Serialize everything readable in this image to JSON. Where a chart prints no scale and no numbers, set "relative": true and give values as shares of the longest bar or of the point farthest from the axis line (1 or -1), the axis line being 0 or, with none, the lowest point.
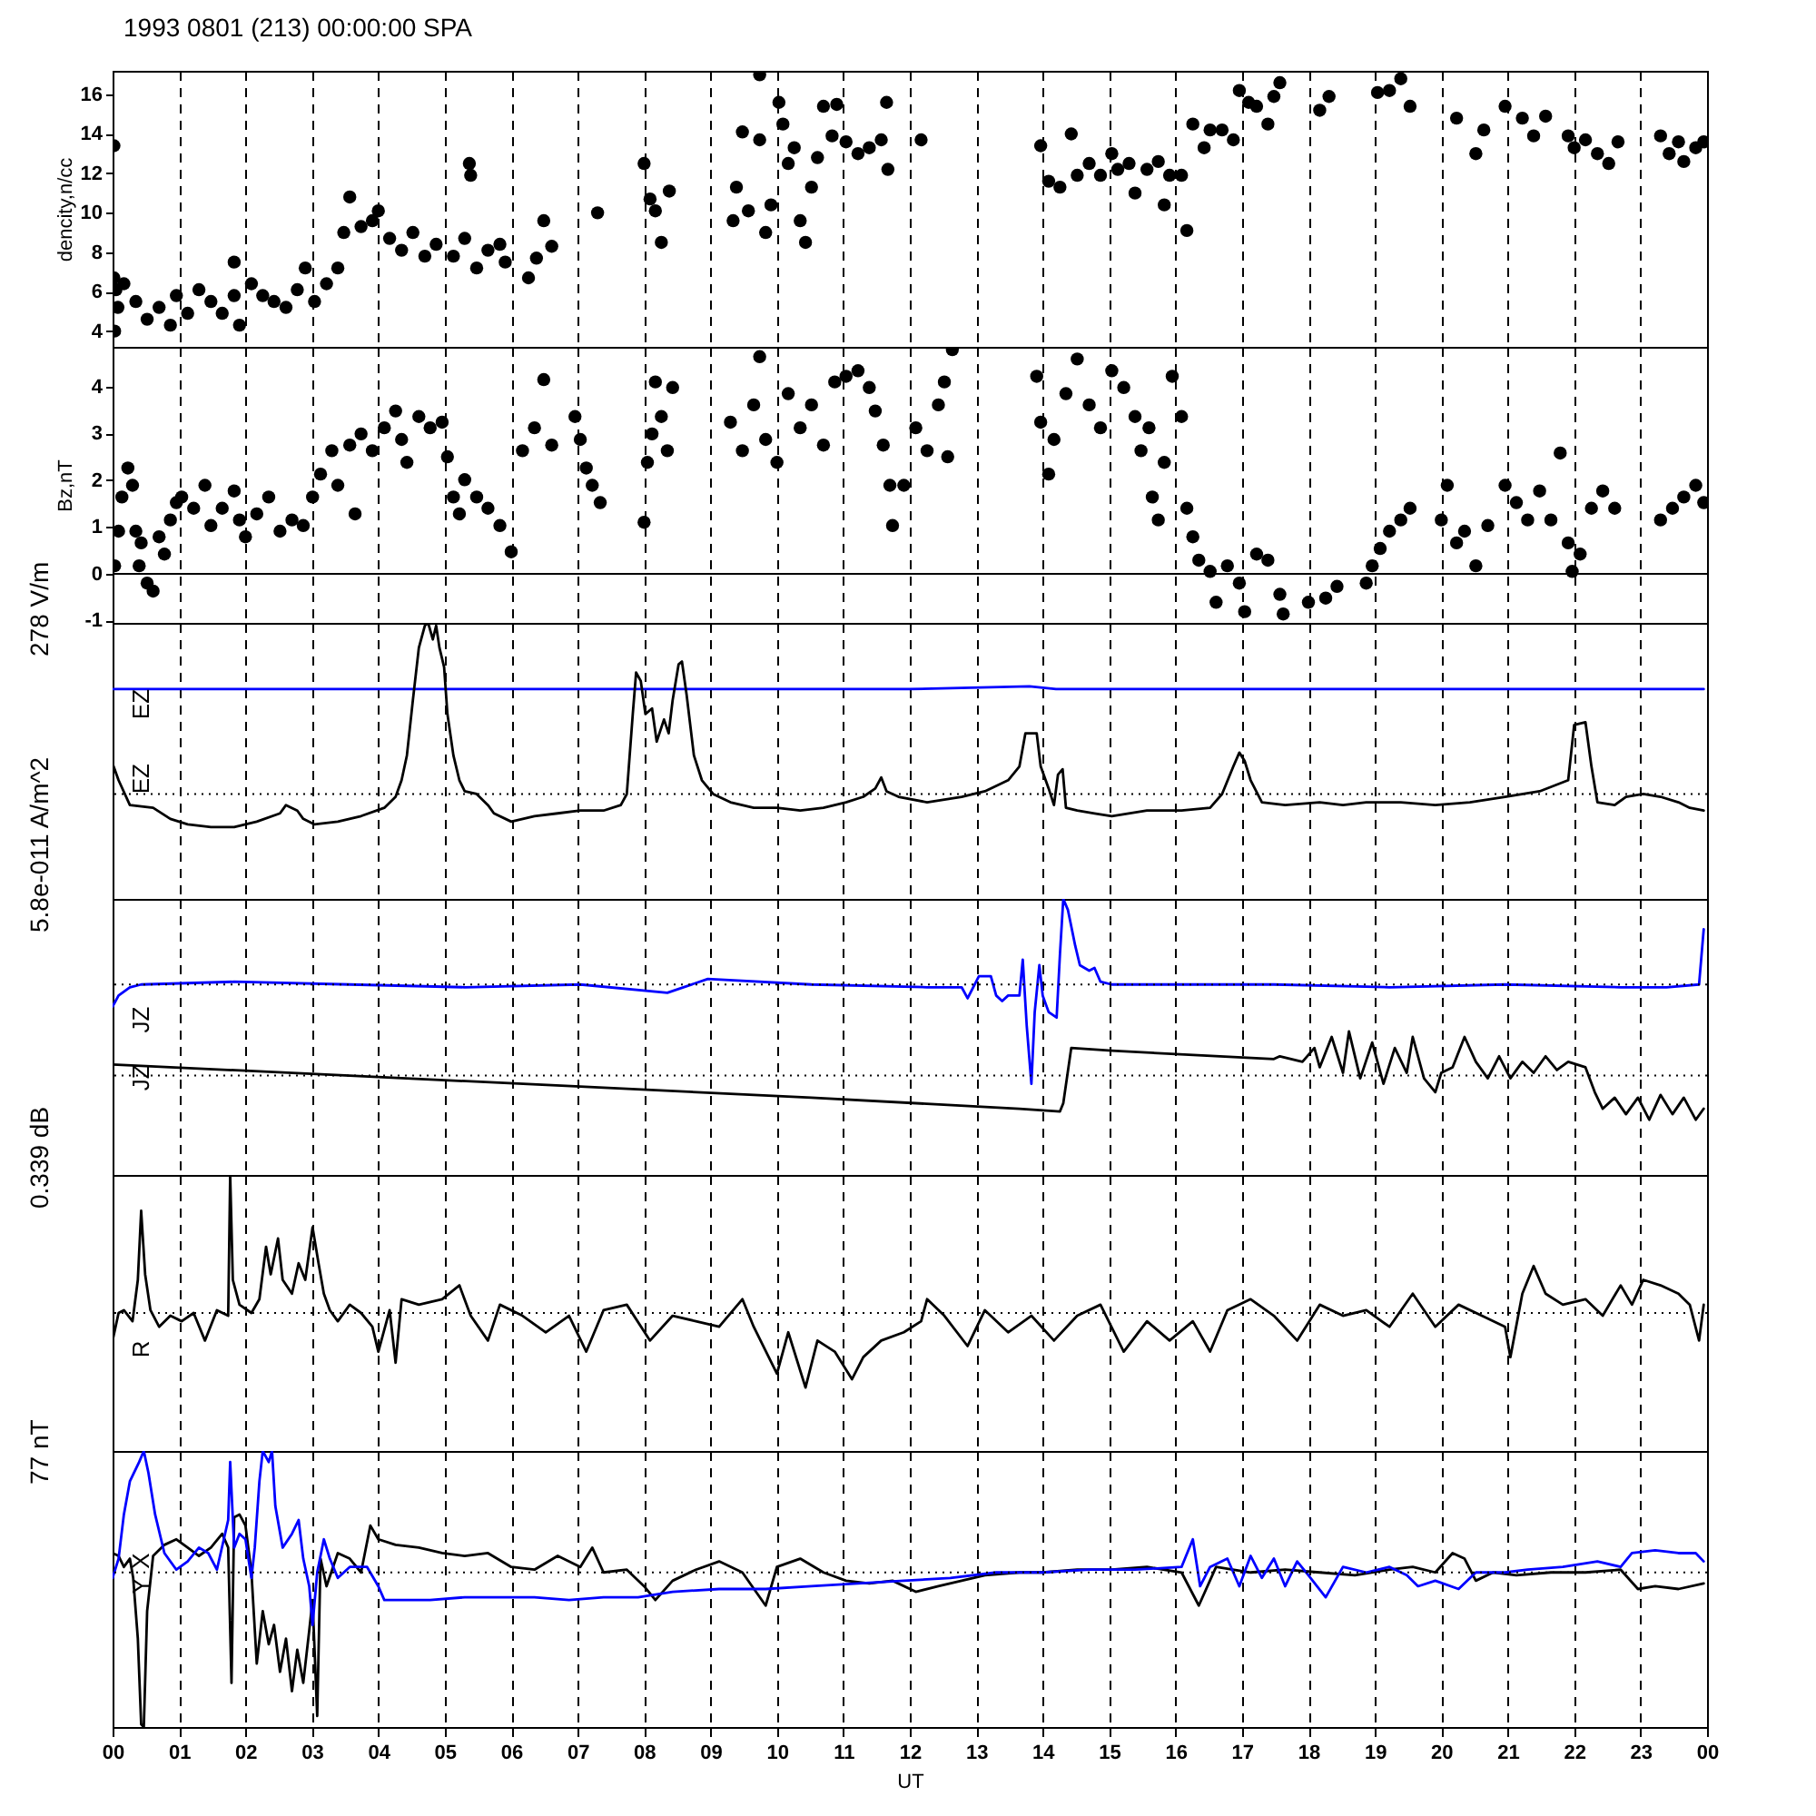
{
  "chart_data": [
    {
      "type": "scatter",
      "title": "1993 0801 (213) 00:00:00 SPA",
      "ylabel": "dencity,n/cc",
      "color": "#000000",
      "marker": "circle",
      "grid": "x",
      "tick_labels": "y",
      "xlim": [
        0,
        24
      ],
      "xticks": [
        0,
        1,
        2,
        3,
        4,
        5,
        6,
        7,
        8,
        9,
        10,
        11,
        12,
        13,
        14,
        15,
        16,
        17,
        18,
        19,
        20,
        21,
        22,
        23,
        24
      ],
      "ylim": [
        3.2,
        17.2
      ],
      "yticks": [
        4,
        6,
        8,
        10,
        12,
        14,
        16
      ],
      "x": [
        0.02,
        0.02,
        0.05,
        0.08,
        0.03,
        0.17,
        0.35,
        0.52,
        0.7,
        0.87,
        0.96,
        1.13,
        1.3,
        1.48,
        1.65,
        1.83,
        1.91,
        1.83,
        2.09,
        2.26,
        2.43,
        2.61,
        2.78,
        2.9,
        3.04,
        3.22,
        3.39,
        3.48,
        3.57,
        3.74,
        3.91,
        4.0,
        4.17,
        4.35,
        4.52,
        4.7,
        4.87,
        5.13,
        5.37,
        5.39,
        5.3,
        5.48,
        5.65,
        5.83,
        5.91,
        6.26,
        6.38,
        6.49,
        6.61,
        7.3,
        8.0,
        8.09,
        8.17,
        8.26,
        8.38,
        9.34,
        9.39,
        9.48,
        9.57,
        9.74,
        9.83,
        9.91,
        10.03,
        10.09,
        10.17,
        10.26,
        10.35,
        10.43,
        10.52,
        10.61,
        10.7,
        10.83,
        10.9,
        9.74,
        11.04,
        11.22,
        11.39,
        11.57,
        11.65,
        11.67,
        12.17,
        13.97,
        14.09,
        14.26,
        14.43,
        14.52,
        14.7,
        14.87,
        15.04,
        15.13,
        15.3,
        15.39,
        15.57,
        15.74,
        15.83,
        15.91,
        16.09,
        16.17,
        16.26,
        16.43,
        16.52,
        16.7,
        16.87,
        16.96,
        17.1,
        17.22,
        17.39,
        17.48,
        17.57,
        18.17,
        18.31,
        19.04,
        19.22,
        19.39,
        19.53,
        20.23,
        20.52,
        20.64,
        20.96,
        21.22,
        21.39,
        21.57,
        21.91,
        22.0,
        22.17,
        22.35,
        22.52,
        22.66,
        23.3,
        23.43,
        23.57,
        23.65,
        23.83,
        23.95
      ],
      "values": [
        13.4,
        6.7,
        6.1,
        5.2,
        4.0,
        6.4,
        5.5,
        4.6,
        5.2,
        4.3,
        5.8,
        4.9,
        6.1,
        5.5,
        4.9,
        5.8,
        4.3,
        7.5,
        6.4,
        5.8,
        5.5,
        5.2,
        6.1,
        7.2,
        5.5,
        6.4,
        7.2,
        9.0,
        10.8,
        9.3,
        9.6,
        10.1,
        8.7,
        8.1,
        9.0,
        7.8,
        8.4,
        7.8,
        12.5,
        11.9,
        8.7,
        7.2,
        8.1,
        8.4,
        7.5,
        6.7,
        7.7,
        9.6,
        8.3,
        10.0,
        12.5,
        10.7,
        10.1,
        8.5,
        11.1,
        9.6,
        11.3,
        14.1,
        10.1,
        13.7,
        9.0,
        10.4,
        15.6,
        14.5,
        12.5,
        13.3,
        9.6,
        8.5,
        11.3,
        12.8,
        15.4,
        13.9,
        15.5,
        17.0,
        13.6,
        13.0,
        13.3,
        13.7,
        15.6,
        12.2,
        13.7,
        13.4,
        11.6,
        11.3,
        14.0,
        11.9,
        12.5,
        11.9,
        13.0,
        12.2,
        12.5,
        11.0,
        12.2,
        12.6,
        10.4,
        11.9,
        11.9,
        9.1,
        14.5,
        13.3,
        14.2,
        14.2,
        13.7,
        16.2,
        15.6,
        15.4,
        14.5,
        15.9,
        16.6,
        15.2,
        15.9,
        16.1,
        16.2,
        16.8,
        15.4,
        14.8,
        13.0,
        14.2,
        15.4,
        14.8,
        13.9,
        14.9,
        13.9,
        13.3,
        13.7,
        13.0,
        12.5,
        13.6,
        13.9,
        13.0,
        13.6,
        12.6,
        13.3,
        13.6
      ]
    },
    {
      "type": "scatter",
      "ylabel": "Bz,nT",
      "color": "#000000",
      "marker": "circle",
      "grid": "x",
      "tick_labels": "y",
      "xlim": [
        0,
        24
      ],
      "xticks": [
        0,
        1,
        2,
        3,
        4,
        5,
        6,
        7,
        8,
        9,
        10,
        11,
        12,
        13,
        14,
        15,
        16,
        17,
        18,
        19,
        20,
        21,
        22,
        23,
        24
      ],
      "ylim": [
        -1.05,
        4.85
      ],
      "yticks": [
        -1,
        0,
        1,
        2,
        3,
        4
      ],
      "ref_lines": [
        {
          "axis": "y",
          "value": 0,
          "line_style": "solid",
          "color": "#000000"
        }
      ],
      "x": [
        0.03,
        0.09,
        0.14,
        0.23,
        0.3,
        0.35,
        0.4,
        0.43,
        0.52,
        0.61,
        0.7,
        0.78,
        0.87,
        0.96,
        1.04,
        1.22,
        1.39,
        1.48,
        1.65,
        1.83,
        1.91,
        2.0,
        2.17,
        2.35,
        2.52,
        2.7,
        2.87,
        3.01,
        3.13,
        3.3,
        3.39,
        3.57,
        3.65,
        3.74,
        3.91,
        4.09,
        4.26,
        4.35,
        4.43,
        4.61,
        4.78,
        4.96,
        5.04,
        5.13,
        5.22,
        5.3,
        5.48,
        5.65,
        5.83,
        6.0,
        6.17,
        6.35,
        6.49,
        6.61,
        6.96,
        7.04,
        7.13,
        7.22,
        7.34,
        8.0,
        8.05,
        8.12,
        8.17,
        8.26,
        8.35,
        8.43,
        9.3,
        9.48,
        9.65,
        9.74,
        9.83,
        10.0,
        10.17,
        10.35,
        10.52,
        10.7,
        10.87,
        11.04,
        11.22,
        11.39,
        11.48,
        11.6,
        11.7,
        11.74,
        11.91,
        12.09,
        12.26,
        12.43,
        12.52,
        12.57,
        12.64,
        13.91,
        13.97,
        14.09,
        14.17,
        14.35,
        14.52,
        14.7,
        14.87,
        15.04,
        15.22,
        15.39,
        15.48,
        15.6,
        15.65,
        15.74,
        15.83,
        15.95,
        16.09,
        16.17,
        16.26,
        16.35,
        16.52,
        16.61,
        16.78,
        16.96,
        17.04,
        17.22,
        17.39,
        17.57,
        17.62,
        18.0,
        18.26,
        18.43,
        18.87,
        18.96,
        19.08,
        19.22,
        19.39,
        19.53,
        20.0,
        20.09,
        20.23,
        20.35,
        20.52,
        20.7,
        20.96,
        21.13,
        21.3,
        21.48,
        21.65,
        21.79,
        21.91,
        21.97,
        22.09,
        22.26,
        22.43,
        22.61,
        23.3,
        23.48,
        23.65,
        23.83,
        23.95
      ],
      "values": [
        0.17,
        0.91,
        1.64,
        2.26,
        1.89,
        0.91,
        0.17,
        0.66,
        -0.2,
        -0.37,
        0.79,
        0.42,
        1.15,
        1.52,
        1.64,
        1.4,
        1.89,
        1.03,
        1.4,
        1.77,
        1.15,
        0.79,
        1.28,
        1.64,
        0.91,
        1.15,
        1.03,
        1.64,
        2.13,
        2.63,
        1.89,
        2.75,
        1.28,
        2.99,
        2.63,
        3.12,
        3.48,
        2.87,
        2.38,
        3.36,
        3.12,
        3.24,
        2.5,
        1.64,
        1.28,
        2.01,
        1.64,
        1.4,
        1.03,
        0.47,
        2.63,
        3.12,
        4.15,
        2.75,
        3.36,
        2.87,
        2.26,
        1.89,
        1.52,
        1.1,
        2.38,
        2.99,
        4.1,
        3.36,
        2.63,
        3.98,
        3.24,
        2.63,
        3.61,
        4.64,
        2.87,
        2.38,
        3.85,
        3.12,
        3.61,
        2.75,
        4.1,
        4.22,
        4.34,
        3.98,
        3.48,
        2.75,
        1.89,
        1.03,
        1.89,
        3.12,
        2.63,
        3.61,
        4.1,
        2.5,
        4.79,
        4.22,
        3.24,
        2.13,
        2.87,
        3.85,
        4.59,
        3.61,
        3.12,
        4.34,
        3.98,
        3.36,
        2.63,
        3.12,
        1.64,
        1.15,
        2.38,
        4.22,
        3.36,
        1.4,
        0.79,
        0.29,
        0.05,
        -0.61,
        0.17,
        -0.2,
        -0.81,
        0.42,
        0.29,
        -0.44,
        -0.86,
        -0.61,
        -0.52,
        -0.27,
        -0.2,
        0.17,
        0.54,
        0.91,
        1.15,
        1.4,
        1.15,
        1.89,
        0.66,
        0.91,
        0.17,
        1.03,
        1.89,
        1.52,
        1.15,
        1.77,
        1.15,
        2.58,
        0.66,
        0.05,
        0.42,
        1.4,
        1.77,
        1.4,
        1.15,
        1.4,
        1.64,
        1.89,
        1.52
      ]
    },
    {
      "type": "line",
      "relative": true,
      "ylabel": "278 V/m",
      "grid": "x",
      "tick_labels": false,
      "xlim": [
        0,
        24
      ],
      "xticks": [
        0,
        1,
        2,
        3,
        4,
        5,
        6,
        7,
        8,
        9,
        10,
        11,
        12,
        13,
        14,
        15,
        16,
        17,
        18,
        19,
        20,
        21,
        22,
        23,
        24
      ],
      "ref_lines": [
        {
          "axis": "y",
          "value": 0.38,
          "line_style": "dotted",
          "color": "#000000"
        }
      ],
      "series": [
        {
          "name": "EZ",
          "color": "#0000ff",
          "x": [
            0,
            2,
            4,
            6,
            8,
            10,
            12,
            13.8,
            14.2,
            16,
            18,
            20,
            22,
            23.95
          ],
          "values": [
            0.76,
            0.76,
            0.76,
            0.76,
            0.76,
            0.76,
            0.76,
            0.77,
            0.76,
            0.76,
            0.76,
            0.76,
            0.76,
            0.76
          ]
        },
        {
          "name": "EZ",
          "color": "#000000",
          "x": [
            0.0,
            0.09,
            0.26,
            0.61,
            0.87,
            1.13,
            1.48,
            1.83,
            2.17,
            2.52,
            2.61,
            2.78,
            2.87,
            3.04,
            3.39,
            3.74,
            4.09,
            4.26,
            4.35,
            4.43,
            4.52,
            4.61,
            4.7,
            4.75,
            4.82,
            4.87,
            4.92,
            4.99,
            5.04,
            5.13,
            5.22,
            5.3,
            5.48,
            5.65,
            5.74,
            6.0,
            6.35,
            6.7,
            7.04,
            7.39,
            7.65,
            7.74,
            7.83,
            7.88,
            7.95,
            8.02,
            8.12,
            8.19,
            8.3,
            8.37,
            8.43,
            8.52,
            8.57,
            8.64,
            8.75,
            8.87,
            9.04,
            9.3,
            9.65,
            10.0,
            10.35,
            10.7,
            11.04,
            11.3,
            11.48,
            11.57,
            11.65,
            11.83,
            12.26,
            12.78,
            13.13,
            13.48,
            13.65,
            13.74,
            13.91,
            13.97,
            14.09,
            14.17,
            14.23,
            14.3,
            14.35,
            14.52,
            14.78,
            15.04,
            15.57,
            16.09,
            16.52,
            16.7,
            16.87,
            16.96,
            17.04,
            17.13,
            17.3,
            17.65,
            18.17,
            18.52,
            18.87,
            19.39,
            19.91,
            20.43,
            20.96,
            21.48,
            21.91,
            22.0,
            22.17,
            22.26,
            22.35,
            22.61,
            22.78,
            23.04,
            23.3,
            23.57,
            23.74,
            23.95
          ],
          "values": [
            0.49,
            0.43,
            0.34,
            0.33,
            0.29,
            0.27,
            0.26,
            0.26,
            0.28,
            0.31,
            0.34,
            0.32,
            0.29,
            0.27,
            0.28,
            0.3,
            0.33,
            0.37,
            0.43,
            0.52,
            0.72,
            0.91,
            0.99,
            1.0,
            0.94,
            0.99,
            0.91,
            0.84,
            0.67,
            0.52,
            0.43,
            0.39,
            0.38,
            0.34,
            0.31,
            0.28,
            0.3,
            0.31,
            0.32,
            0.32,
            0.34,
            0.38,
            0.67,
            0.82,
            0.79,
            0.67,
            0.69,
            0.57,
            0.65,
            0.6,
            0.72,
            0.85,
            0.86,
            0.74,
            0.52,
            0.43,
            0.38,
            0.35,
            0.33,
            0.33,
            0.32,
            0.33,
            0.35,
            0.37,
            0.4,
            0.44,
            0.39,
            0.37,
            0.35,
            0.37,
            0.39,
            0.43,
            0.48,
            0.6,
            0.6,
            0.48,
            0.4,
            0.34,
            0.45,
            0.47,
            0.33,
            0.32,
            0.31,
            0.3,
            0.32,
            0.32,
            0.33,
            0.38,
            0.48,
            0.53,
            0.5,
            0.43,
            0.35,
            0.34,
            0.35,
            0.34,
            0.35,
            0.35,
            0.34,
            0.35,
            0.37,
            0.39,
            0.43,
            0.63,
            0.64,
            0.48,
            0.35,
            0.34,
            0.37,
            0.38,
            0.37,
            0.35,
            0.33,
            0.32
          ]
        }
      ]
    },
    {
      "type": "line",
      "relative": true,
      "ylabel": "5.8e-011 A/m^2",
      "grid": "x",
      "tick_labels": false,
      "xlim": [
        0,
        24
      ],
      "xticks": [
        0,
        1,
        2,
        3,
        4,
        5,
        6,
        7,
        8,
        9,
        10,
        11,
        12,
        13,
        14,
        15,
        16,
        17,
        18,
        19,
        20,
        21,
        22,
        23,
        24
      ],
      "ref_lines": [
        {
          "axis": "y",
          "value": 0.69,
          "line_style": "dotted",
          "color": "#000000"
        },
        {
          "axis": "y",
          "value": 0.36,
          "line_style": "dotted",
          "color": "#000000"
        }
      ],
      "series": [
        {
          "name": "JZ",
          "color": "#0000ff",
          "x": [
            0.0,
            0.09,
            0.26,
            0.43,
            1.83,
            3.57,
            5.3,
            7.04,
            8.35,
            8.96,
            10.52,
            12.26,
            12.78,
            12.87,
            13.04,
            13.22,
            13.3,
            13.39,
            13.48,
            13.65,
            13.7,
            13.76,
            13.83,
            13.88,
            13.95,
            14.0,
            14.09,
            14.21,
            14.26,
            14.31,
            14.38,
            14.49,
            14.56,
            14.7,
            14.78,
            14.87,
            15.04,
            15.74,
            17.48,
            19.22,
            20.96,
            22.7,
            23.39,
            23.88,
            23.95
          ],
          "values": [
            0.61,
            0.65,
            0.68,
            0.69,
            0.7,
            0.69,
            0.68,
            0.69,
            0.66,
            0.71,
            0.69,
            0.68,
            0.68,
            0.64,
            0.72,
            0.72,
            0.65,
            0.63,
            0.65,
            0.65,
            0.78,
            0.54,
            0.33,
            0.59,
            0.76,
            0.65,
            0.59,
            0.57,
            0.8,
            1.0,
            0.96,
            0.83,
            0.76,
            0.74,
            0.75,
            0.7,
            0.69,
            0.69,
            0.69,
            0.68,
            0.69,
            0.68,
            0.68,
            0.69,
            0.89
          ]
        },
        {
          "name": "JZ",
          "color": "#000000",
          "x": [
            0.0,
            3.57,
            7.04,
            10.52,
            13.65,
            14.26,
            14.31,
            14.43,
            15.04,
            17.48,
            17.57,
            17.91,
            18.09,
            18.17,
            18.35,
            18.52,
            18.61,
            18.78,
            18.96,
            19.13,
            19.3,
            19.48,
            19.57,
            19.74,
            19.91,
            20.0,
            20.17,
            20.35,
            20.52,
            20.7,
            20.87,
            21.04,
            21.22,
            21.39,
            21.57,
            21.74,
            21.91,
            22.17,
            22.31,
            22.43,
            22.61,
            22.78,
            22.96,
            23.13,
            23.3,
            23.48,
            23.65,
            23.83,
            23.95
          ],
          "values": [
            0.4,
            0.36,
            0.32,
            0.28,
            0.24,
            0.23,
            0.26,
            0.46,
            0.45,
            0.42,
            0.43,
            0.41,
            0.46,
            0.39,
            0.5,
            0.37,
            0.52,
            0.35,
            0.48,
            0.33,
            0.46,
            0.37,
            0.5,
            0.35,
            0.3,
            0.37,
            0.39,
            0.5,
            0.41,
            0.35,
            0.43,
            0.35,
            0.41,
            0.37,
            0.43,
            0.38,
            0.41,
            0.39,
            0.3,
            0.24,
            0.28,
            0.22,
            0.28,
            0.2,
            0.29,
            0.22,
            0.28,
            0.2,
            0.24
          ]
        }
      ]
    },
    {
      "type": "line",
      "relative": true,
      "ylabel": "0.339 dB",
      "grid": "x",
      "tick_labels": false,
      "xlim": [
        0,
        24
      ],
      "xticks": [
        0,
        1,
        2,
        3,
        4,
        5,
        6,
        7,
        8,
        9,
        10,
        11,
        12,
        13,
        14,
        15,
        16,
        17,
        18,
        19,
        20,
        21,
        22,
        23,
        24
      ],
      "ref_lines": [
        {
          "axis": "y",
          "value": 0.5,
          "line_style": "dotted",
          "color": "#000000"
        }
      ],
      "series": [
        {
          "name": "R",
          "color": "#000000",
          "x": [
            0.0,
            0.09,
            0.17,
            0.3,
            0.38,
            0.43,
            0.49,
            0.57,
            0.7,
            0.87,
            1.04,
            1.22,
            1.39,
            1.57,
            1.74,
            1.77,
            1.81,
            1.91,
            2.09,
            2.21,
            2.31,
            2.38,
            2.49,
            2.56,
            2.7,
            2.8,
            2.9,
            3.01,
            3.1,
            3.18,
            3.27,
            3.39,
            3.57,
            3.74,
            3.91,
            4.0,
            4.17,
            4.26,
            4.35,
            4.61,
            4.96,
            5.22,
            5.39,
            5.65,
            5.83,
            6.17,
            6.52,
            6.87,
            7.13,
            7.39,
            7.74,
            8.09,
            8.43,
            8.78,
            9.13,
            9.48,
            9.65,
            10.0,
            10.17,
            10.43,
            10.61,
            10.87,
            11.13,
            11.3,
            11.57,
            11.91,
            12.17,
            12.26,
            12.52,
            12.87,
            13.13,
            13.48,
            13.83,
            14.17,
            14.52,
            14.87,
            15.22,
            15.57,
            15.91,
            16.26,
            16.52,
            16.78,
            17.13,
            17.48,
            17.83,
            18.17,
            18.52,
            18.87,
            19.22,
            19.57,
            19.91,
            20.26,
            20.61,
            20.96,
            21.04,
            21.22,
            21.39,
            21.57,
            21.83,
            22.17,
            22.43,
            22.7,
            22.87,
            23.04,
            23.3,
            23.57,
            23.74,
            23.88,
            23.95
          ],
          "values": [
            0.4,
            0.5,
            0.51,
            0.47,
            0.62,
            0.87,
            0.64,
            0.51,
            0.45,
            0.49,
            0.47,
            0.5,
            0.4,
            0.51,
            0.49,
            1.0,
            0.62,
            0.53,
            0.5,
            0.55,
            0.74,
            0.64,
            0.77,
            0.62,
            0.57,
            0.68,
            0.62,
            0.81,
            0.68,
            0.57,
            0.51,
            0.47,
            0.53,
            0.5,
            0.45,
            0.36,
            0.51,
            0.32,
            0.55,
            0.53,
            0.55,
            0.6,
            0.49,
            0.4,
            0.53,
            0.49,
            0.43,
            0.49,
            0.36,
            0.51,
            0.53,
            0.4,
            0.49,
            0.47,
            0.45,
            0.55,
            0.45,
            0.28,
            0.43,
            0.23,
            0.4,
            0.36,
            0.26,
            0.34,
            0.4,
            0.43,
            0.47,
            0.55,
            0.49,
            0.38,
            0.51,
            0.43,
            0.49,
            0.4,
            0.49,
            0.53,
            0.36,
            0.47,
            0.4,
            0.47,
            0.36,
            0.51,
            0.55,
            0.49,
            0.4,
            0.53,
            0.49,
            0.51,
            0.45,
            0.57,
            0.45,
            0.53,
            0.49,
            0.45,
            0.34,
            0.57,
            0.67,
            0.57,
            0.53,
            0.55,
            0.49,
            0.6,
            0.53,
            0.62,
            0.6,
            0.57,
            0.53,
            0.4,
            0.53
          ]
        }
      ]
    },
    {
      "type": "line",
      "relative": true,
      "ylabel": "77 nT",
      "xlabel": "UT",
      "grid": "x",
      "tick_labels": "x",
      "xlim": [
        0,
        24
      ],
      "xticks": [
        {
          "value": 0,
          "label": "00"
        },
        {
          "value": 1,
          "label": "01"
        },
        {
          "value": 2,
          "label": "02"
        },
        {
          "value": 3,
          "label": "03"
        },
        {
          "value": 4,
          "label": "04"
        },
        {
          "value": 5,
          "label": "05"
        },
        {
          "value": 6,
          "label": "06"
        },
        {
          "value": 7,
          "label": "07"
        },
        {
          "value": 8,
          "label": "08"
        },
        {
          "value": 9,
          "label": "09"
        },
        {
          "value": 10,
          "label": "10"
        },
        {
          "value": 11,
          "label": "11"
        },
        {
          "value": 12,
          "label": "12"
        },
        {
          "value": 13,
          "label": "13"
        },
        {
          "value": 14,
          "label": "14"
        },
        {
          "value": 15,
          "label": "15"
        },
        {
          "value": 16,
          "label": "16"
        },
        {
          "value": 17,
          "label": "17"
        },
        {
          "value": 18,
          "label": "18"
        },
        {
          "value": 19,
          "label": "19"
        },
        {
          "value": 20,
          "label": "20"
        },
        {
          "value": 21,
          "label": "21"
        },
        {
          "value": 22,
          "label": "22"
        },
        {
          "value": 23,
          "label": "23"
        },
        {
          "value": 24,
          "label": "00"
        }
      ],
      "ref_lines": [
        {
          "axis": "y",
          "value": 0.56,
          "line_style": "dotted",
          "color": "#000000"
        }
      ],
      "series": [
        {
          "name": "X",
          "color": "#000000",
          "x": [
            0.0,
            0.09,
            0.17,
            0.26,
            0.31,
            0.38,
            0.43,
            0.47,
            0.52,
            0.61,
            0.78,
            0.96,
            1.13,
            1.3,
            1.48,
            1.65,
            1.74,
            1.79,
            1.83,
            1.91,
            2.0,
            2.09,
            2.17,
            2.26,
            2.35,
            2.43,
            2.52,
            2.61,
            2.7,
            2.78,
            2.87,
            2.96,
            3.01,
            3.08,
            3.13,
            3.22,
            3.39,
            3.57,
            3.74,
            3.88,
            4.0,
            4.26,
            4.61,
            4.96,
            5.3,
            5.65,
            6.0,
            6.35,
            6.7,
            7.04,
            7.22,
            7.39,
            7.74,
            8.0,
            8.17,
            8.43,
            8.78,
            9.13,
            9.48,
            9.83,
            10.0,
            10.35,
            10.7,
            11.04,
            11.39,
            11.74,
            12.09,
            12.43,
            12.78,
            13.13,
            13.65,
            14.0,
            14.52,
            15.04,
            15.57,
            16.09,
            16.35,
            16.61,
            17.13,
            17.65,
            18.17,
            18.7,
            19.22,
            19.57,
            19.91,
            20.17,
            20.35,
            20.52,
            20.78,
            21.13,
            21.65,
            22.17,
            22.7,
            22.96,
            23.22,
            23.57,
            23.95
          ],
          "values": [
            0.63,
            0.62,
            0.58,
            0.61,
            0.54,
            0.32,
            0.01,
            0.0,
            0.42,
            0.62,
            0.66,
            0.68,
            0.65,
            0.62,
            0.65,
            0.7,
            0.65,
            0.16,
            0.76,
            0.77,
            0.73,
            0.56,
            0.23,
            0.42,
            0.3,
            0.37,
            0.2,
            0.32,
            0.13,
            0.28,
            0.16,
            0.35,
            0.46,
            0.04,
            0.61,
            0.51,
            0.63,
            0.61,
            0.56,
            0.73,
            0.68,
            0.66,
            0.65,
            0.63,
            0.62,
            0.63,
            0.58,
            0.57,
            0.62,
            0.58,
            0.65,
            0.56,
            0.57,
            0.51,
            0.46,
            0.53,
            0.57,
            0.6,
            0.56,
            0.44,
            0.58,
            0.61,
            0.56,
            0.53,
            0.52,
            0.53,
            0.49,
            0.51,
            0.53,
            0.55,
            0.56,
            0.56,
            0.57,
            0.57,
            0.58,
            0.56,
            0.44,
            0.58,
            0.56,
            0.57,
            0.56,
            0.55,
            0.57,
            0.58,
            0.56,
            0.63,
            0.61,
            0.53,
            0.56,
            0.55,
            0.56,
            0.56,
            0.57,
            0.5,
            0.51,
            0.5,
            0.52
          ]
        },
        {
          "name": "Y",
          "color": "#0000ff",
          "x": [
            0.0,
            0.09,
            0.17,
            0.26,
            0.4,
            0.47,
            0.54,
            0.64,
            0.78,
            0.96,
            1.13,
            1.3,
            1.44,
            1.57,
            1.74,
            1.77,
            1.83,
            1.91,
            2.0,
            2.09,
            2.14,
            2.21,
            2.26,
            2.35,
            2.4,
            2.45,
            2.56,
            2.7,
            2.8,
            2.87,
            2.96,
            3.01,
            3.08,
            3.18,
            3.27,
            3.39,
            3.57,
            3.83,
            4.0,
            4.09,
            4.26,
            4.78,
            5.3,
            5.83,
            6.35,
            6.87,
            7.39,
            7.91,
            8.43,
            9.13,
            9.83,
            10.52,
            11.22,
            11.91,
            12.61,
            13.3,
            14.0,
            14.7,
            15.39,
            16.09,
            16.26,
            16.37,
            16.52,
            16.78,
            16.96,
            17.13,
            17.3,
            17.48,
            17.65,
            17.83,
            18.0,
            18.26,
            18.52,
            18.87,
            19.22,
            19.48,
            19.65,
            19.91,
            20.26,
            20.52,
            20.96,
            21.3,
            21.83,
            22.35,
            22.7,
            22.87,
            23.22,
            23.57,
            23.83,
            23.95
          ],
          "values": [
            0.54,
            0.61,
            0.77,
            0.89,
            0.96,
            1.0,
            0.92,
            0.77,
            0.63,
            0.57,
            0.6,
            0.65,
            0.63,
            0.57,
            0.75,
            0.96,
            0.65,
            0.7,
            0.68,
            0.54,
            0.65,
            0.89,
            1.0,
            0.96,
            1.0,
            0.8,
            0.65,
            0.7,
            0.75,
            0.61,
            0.51,
            0.37,
            0.56,
            0.68,
            0.61,
            0.54,
            0.58,
            0.58,
            0.51,
            0.46,
            0.46,
            0.46,
            0.47,
            0.47,
            0.47,
            0.46,
            0.47,
            0.47,
            0.49,
            0.5,
            0.5,
            0.51,
            0.52,
            0.53,
            0.54,
            0.56,
            0.56,
            0.57,
            0.57,
            0.58,
            0.68,
            0.51,
            0.58,
            0.61,
            0.51,
            0.62,
            0.54,
            0.61,
            0.51,
            0.6,
            0.55,
            0.47,
            0.58,
            0.56,
            0.58,
            0.55,
            0.51,
            0.53,
            0.5,
            0.56,
            0.56,
            0.57,
            0.58,
            0.6,
            0.58,
            0.63,
            0.64,
            0.63,
            0.63,
            0.6
          ]
        }
      ]
    }
  ]
}
